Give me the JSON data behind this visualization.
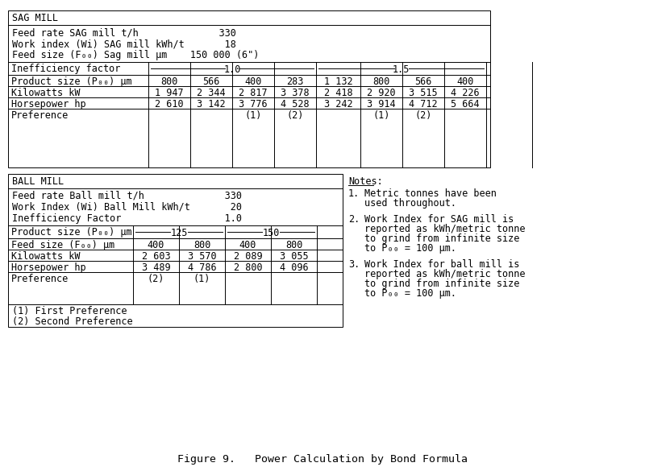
{
  "title": "Figure 9.   Power Calculation by Bond Formula",
  "font_family": "monospace",
  "font_size": 8.5,
  "notes_font_size": 8.5,
  "background_color": "#ffffff",
  "sag_mill_header": "SAG MILL",
  "sag_params": [
    "Feed rate SAG mill t/h              330",
    "Work index (Wi) SAG mill kWh/t       18",
    "Feed size (F₀₀) Sag mill μm    150 000 (6\")"
  ],
  "sag_row1_label": "Product size (P₀₀) μm",
  "sag_row1_data": [
    "800",
    "566",
    "400",
    "283",
    "1 132",
    "800",
    "566",
    "400"
  ],
  "sag_row2_label": "Kilowatts kW",
  "sag_row2_data": [
    "1 947",
    "2 344",
    "2 817",
    "3 378",
    "2 418",
    "2 920",
    "3 515",
    "4 226"
  ],
  "sag_row3_label": "Horsepower hp",
  "sag_row3_data": [
    "2 610",
    "3 142",
    "3 776",
    "4 528",
    "3 242",
    "3 914",
    "4 712",
    "5 664"
  ],
  "sag_row4_label": "Preference",
  "sag_row4_data": [
    "",
    "",
    "(1)",
    "(2)",
    "",
    "(1)",
    "(2)",
    ""
  ],
  "ball_mill_header": "BALL MILL",
  "ball_params": [
    "Feed rate Ball mill t/h              330",
    "Work Index (Wi) Ball Mill kWh/t       20",
    "Inefficiency Factor                  1.0"
  ],
  "ball_row0_label": "Product size (P₀₀) μm",
  "ball_row1_label": "Feed size (F₀₀) μm",
  "ball_row1_data": [
    "400",
    "800",
    "400",
    "800"
  ],
  "ball_row2_label": "Kilowatts kW",
  "ball_row2_data": [
    "2 603",
    "3 570",
    "2 089",
    "3 055"
  ],
  "ball_row3_label": "Horsepower hp",
  "ball_row3_data": [
    "3 489",
    "4 786",
    "2 800",
    "4 096"
  ],
  "ball_row4_label": "Preference",
  "ball_row4_data": [
    "(2)",
    "(1)",
    "",
    ""
  ],
  "footnotes": [
    "(1) First Preference",
    "(2) Second Preference"
  ],
  "notes_header": "Notes:",
  "notes": [
    [
      "1.",
      "Metric tonnes have been\nused throughout."
    ],
    [
      "2.",
      "Work Index for SAG mill is\nreported as kWh/metric tonne\nto grind from infinite size\nto P₀₀ = 100 μm."
    ],
    [
      "3.",
      "Work Index for ball mill is\nreported as kWh/metric tonne\nto grind from infinite size\nto P₀₀ = 100 μm."
    ]
  ]
}
